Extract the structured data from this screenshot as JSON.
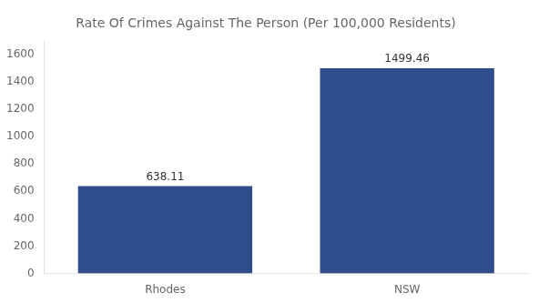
{
  "chart_data": {
    "type": "bar",
    "title": "Rate Of Crimes Against The Person (Per 100,000 Residents)",
    "categories": [
      "Rhodes",
      "NSW"
    ],
    "values": [
      638.11,
      1499.46
    ],
    "color": "#2e4d8a",
    "ylim": [
      0,
      1700
    ],
    "yticks": [
      0,
      200,
      400,
      600,
      800,
      1000,
      1200,
      1400,
      1600
    ],
    "grid": false,
    "data_labels": true
  }
}
